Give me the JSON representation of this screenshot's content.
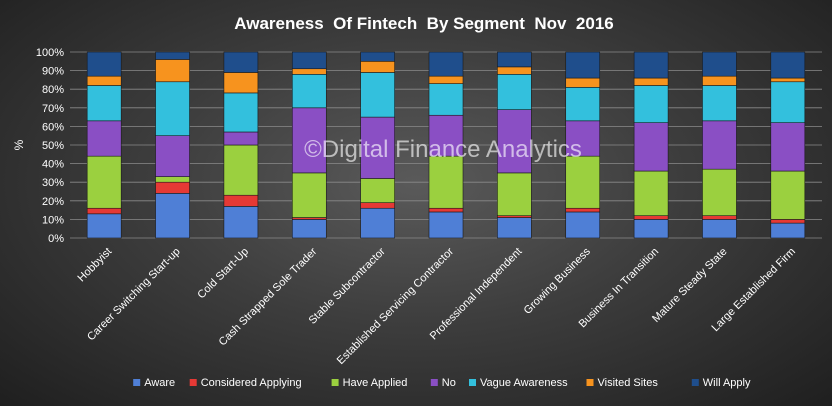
{
  "chart_data": {
    "type": "bar",
    "stacked": true,
    "title": "Awareness  Of Fintech  By Segment  Nov  2016",
    "ylabel": "%",
    "xlabel": "",
    "ylim": [
      0,
      100
    ],
    "yticks": [
      "0%",
      "10%",
      "20%",
      "30%",
      "40%",
      "50%",
      "60%",
      "70%",
      "80%",
      "90%",
      "100%"
    ],
    "grid": true,
    "legend_position": "bottom",
    "watermark": "©Digital Finance Analytics",
    "categories": [
      "Hobbyist",
      "Career Switching Start-up",
      "Cold Start-Up",
      "Cash Strapped Sole Trader",
      "Stable Subcontractor",
      "Established Servicing Contractor",
      "Professional Independent",
      "Growing Business",
      "Business In Transition",
      "Mature Steady State",
      "Large Established Firm"
    ],
    "series": [
      {
        "name": "Aware",
        "color": "#4f7fd6",
        "values": [
          13,
          24,
          17,
          10,
          16,
          14,
          11,
          14,
          10,
          10,
          8
        ]
      },
      {
        "name": "Considered Applying",
        "color": "#e53935",
        "values": [
          3,
          6,
          6,
          1,
          3,
          2,
          1,
          2,
          2,
          2,
          2
        ]
      },
      {
        "name": "Have Applied",
        "color": "#9bd03f",
        "values": [
          28,
          3,
          27,
          24,
          13,
          28,
          23,
          28,
          24,
          25,
          26
        ]
      },
      {
        "name": "No",
        "color": "#8a4fc4",
        "values": [
          19,
          22,
          7,
          35,
          33,
          22,
          34,
          19,
          26,
          26,
          26
        ]
      },
      {
        "name": "Vague Awareness",
        "color": "#33c0dd",
        "values": [
          19,
          29,
          21,
          18,
          24,
          17,
          19,
          18,
          20,
          19,
          22
        ]
      },
      {
        "name": "Visited Sites",
        "color": "#f7931e",
        "values": [
          5,
          12,
          11,
          3,
          6,
          4,
          4,
          5,
          4,
          5,
          2
        ]
      },
      {
        "name": "Will Apply",
        "color": "#1f4e8c",
        "values": [
          13,
          4,
          11,
          9,
          5,
          13,
          8,
          14,
          14,
          13,
          14
        ]
      }
    ]
  }
}
